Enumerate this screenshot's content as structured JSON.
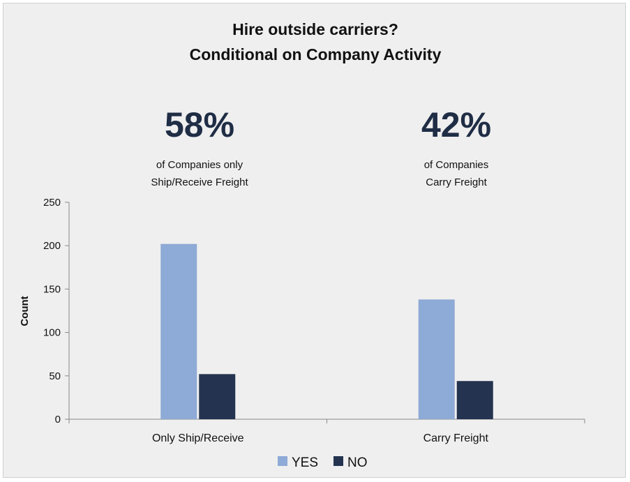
{
  "chart_data": {
    "type": "bar",
    "title": "Hire outside carriers?",
    "subtitle": "Conditional on Company Activity",
    "ylabel": "Count",
    "xlabel": "",
    "ylim": [
      0,
      250
    ],
    "yticks": [
      0,
      50,
      100,
      150,
      200,
      250
    ],
    "categories": [
      "Only Ship/Receive",
      "Carry Freight"
    ],
    "series": [
      {
        "name": "YES",
        "color": "#8eaad6",
        "values": [
          202,
          138
        ]
      },
      {
        "name": "NO",
        "color": "#243350",
        "values": [
          52,
          44
        ]
      }
    ],
    "legend_position": "bottom-center",
    "grid": false,
    "annotations": [
      {
        "percent": "58%",
        "line1": "of Companies only",
        "line2": "Ship/Receive Freight"
      },
      {
        "percent": "42%",
        "line1": "of Companies",
        "line2": "Carry Freight"
      }
    ]
  }
}
